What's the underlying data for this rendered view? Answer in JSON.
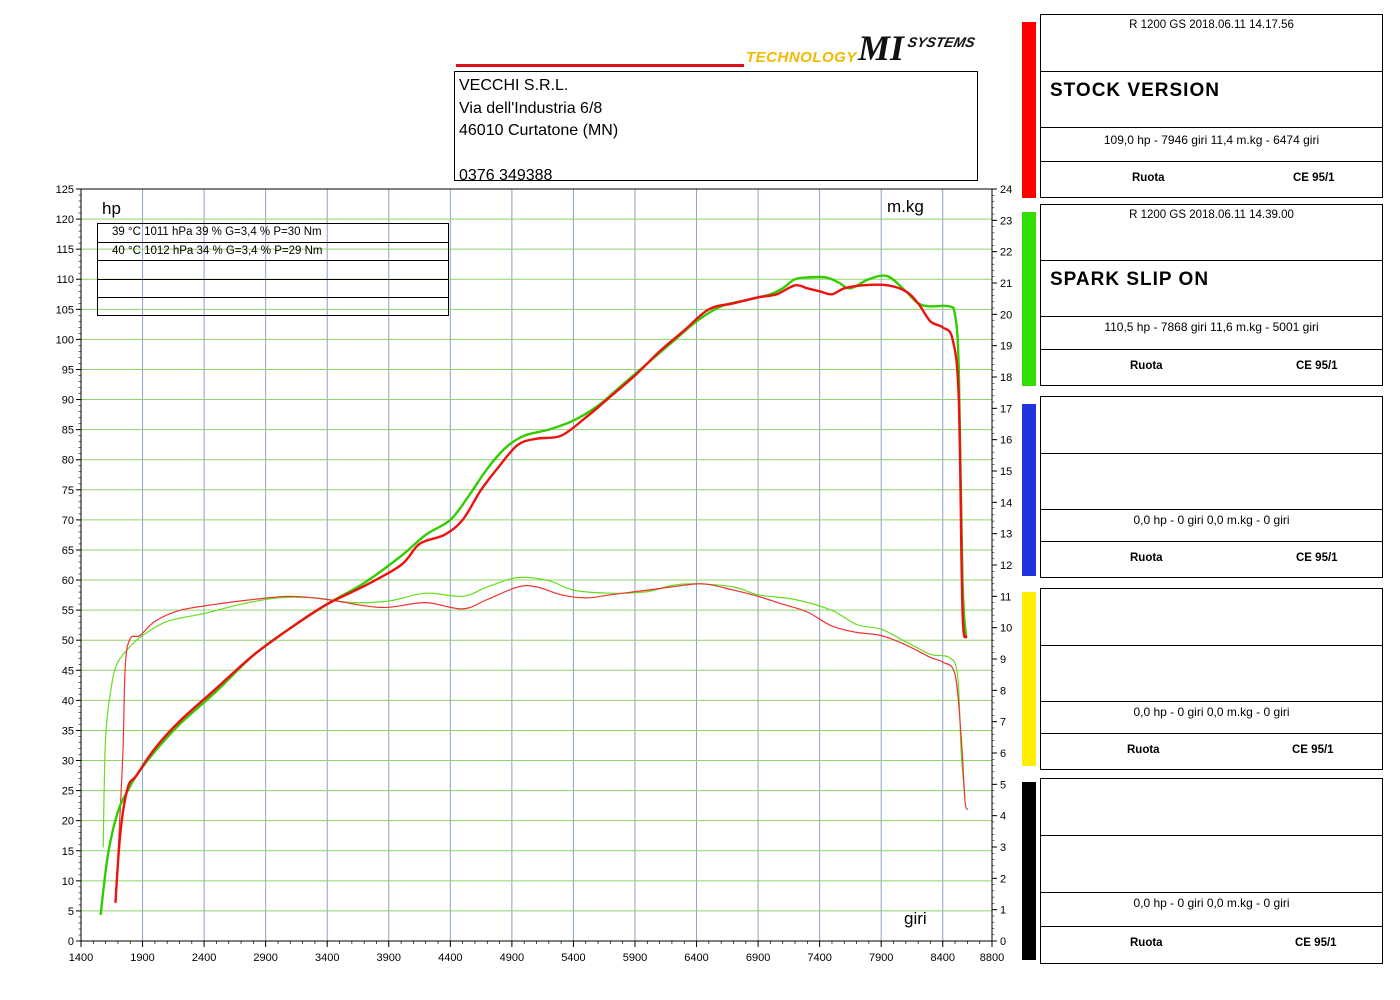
{
  "header": {
    "logo_technology": "TECHNOLOGY",
    "logo_mi": "MI",
    "logo_systems": "SYSTEMS",
    "address": [
      "VECCHI S.R.L.",
      "Via dell'Industria 6/8",
      "46010 Curtatone (MN)",
      "",
      "0376 349388"
    ]
  },
  "conditions": [
    "39 °C   1011 hPa   39 %   G=3,4 %   P=30 Nm",
    "40 °C   1012 hPa   34 %   G=3,4 %   P=29 Nm",
    "",
    "",
    ""
  ],
  "runs": [
    {
      "color": "#ff0000",
      "model": "R 1200 GS    2018.06.11 14.17.56",
      "name": "STOCK VERSION",
      "result": "109,0 hp - 7946 giri      11,4 m.kg - 6474 giri",
      "left": "Ruota",
      "right": "CE 95/1"
    },
    {
      "color": "#33dd00",
      "model": "R 1200 GS    2018.06.11 14.39.00",
      "name": "SPARK SLIP ON",
      "result": "110,5 hp - 7868 giri      11,6 m.kg - 5001 giri",
      "left": "Ruota",
      "right": "CE 95/1"
    },
    {
      "color": "#2233dd",
      "model": "",
      "name": "",
      "result": "0,0 hp - 0 giri      0,0 m.kg - 0 giri",
      "left": "Ruota",
      "right": "CE 95/1"
    },
    {
      "color": "#ffee00",
      "model": "",
      "name": "",
      "result": "0,0 hp - 0 giri      0,0 m.kg - 0 giri",
      "left": "Ruota",
      "right": "CE 95/1"
    },
    {
      "color": "#000000",
      "model": "",
      "name": "",
      "result": "0,0 hp - 0 giri      0,0 m.kg - 0 giri",
      "left": "Ruota",
      "right": "CE 95/1"
    }
  ],
  "chart_data": {
    "type": "line",
    "title": "",
    "xlabel": "giri",
    "ylabel": "hp",
    "y2label": "m.kg",
    "xlim": [
      1400,
      8800
    ],
    "ylim": [
      0,
      125
    ],
    "y2lim": [
      0,
      24
    ],
    "x_ticks": [
      1400,
      1900,
      2400,
      2900,
      3400,
      3900,
      4400,
      4900,
      5400,
      5900,
      6400,
      6900,
      7400,
      7900,
      8400,
      8800
    ],
    "y_ticks": [
      0,
      5,
      10,
      15,
      20,
      25,
      30,
      35,
      40,
      45,
      50,
      55,
      60,
      65,
      70,
      75,
      80,
      85,
      90,
      95,
      100,
      105,
      110,
      115,
      120,
      125
    ],
    "y2_ticks": [
      0,
      1,
      2,
      3,
      4,
      5,
      6,
      7,
      8,
      9,
      10,
      11,
      12,
      13,
      14,
      15,
      16,
      17,
      18,
      19,
      20,
      21,
      22,
      23,
      24
    ],
    "grid": true,
    "series": [
      {
        "name": "STOCK VERSION",
        "axis": "hp",
        "color": "#ee1111",
        "width": 2.4,
        "points": [
          [
            1680,
            6.5
          ],
          [
            1720,
            18
          ],
          [
            1780,
            25.5
          ],
          [
            1850,
            27.5
          ],
          [
            2000,
            32
          ],
          [
            2200,
            36.5
          ],
          [
            2500,
            42
          ],
          [
            2800,
            47.5
          ],
          [
            3100,
            52
          ],
          [
            3400,
            56
          ],
          [
            3700,
            59
          ],
          [
            4000,
            62.5
          ],
          [
            4150,
            66
          ],
          [
            4350,
            67.5
          ],
          [
            4500,
            70
          ],
          [
            4650,
            75
          ],
          [
            4800,
            79
          ],
          [
            4950,
            82.5
          ],
          [
            5100,
            83.5
          ],
          [
            5300,
            84
          ],
          [
            5500,
            87
          ],
          [
            5700,
            90.5
          ],
          [
            5900,
            94
          ],
          [
            6100,
            98
          ],
          [
            6300,
            101.5
          ],
          [
            6500,
            105
          ],
          [
            6700,
            106
          ],
          [
            6900,
            107
          ],
          [
            7050,
            107.5
          ],
          [
            7200,
            109
          ],
          [
            7300,
            108.5
          ],
          [
            7400,
            108
          ],
          [
            7500,
            107.5
          ],
          [
            7600,
            108.5
          ],
          [
            7750,
            109
          ],
          [
            7950,
            109
          ],
          [
            8100,
            108
          ],
          [
            8200,
            106
          ],
          [
            8300,
            103
          ],
          [
            8400,
            102
          ],
          [
            8480,
            100
          ],
          [
            8530,
            90
          ],
          [
            8560,
            55
          ],
          [
            8590,
            50.5
          ]
        ]
      },
      {
        "name": "SPARK SLIP ON",
        "axis": "hp",
        "color": "#33cc00",
        "width": 2.4,
        "points": [
          [
            1560,
            4.5
          ],
          [
            1620,
            14.5
          ],
          [
            1700,
            21.5
          ],
          [
            1780,
            25
          ],
          [
            1850,
            27.5
          ],
          [
            2000,
            31.5
          ],
          [
            2200,
            36
          ],
          [
            2500,
            41.5
          ],
          [
            2800,
            47.5
          ],
          [
            3100,
            52
          ],
          [
            3400,
            56
          ],
          [
            3700,
            59.5
          ],
          [
            4000,
            64
          ],
          [
            4200,
            67.5
          ],
          [
            4400,
            70
          ],
          [
            4550,
            74
          ],
          [
            4700,
            78.5
          ],
          [
            4850,
            82
          ],
          [
            5000,
            84
          ],
          [
            5200,
            85
          ],
          [
            5400,
            86.5
          ],
          [
            5600,
            89
          ],
          [
            5800,
            92.5
          ],
          [
            6000,
            96
          ],
          [
            6200,
            99.5
          ],
          [
            6400,
            103
          ],
          [
            6600,
            105.5
          ],
          [
            6800,
            106.5
          ],
          [
            7000,
            107.5
          ],
          [
            7100,
            108.5
          ],
          [
            7200,
            110
          ],
          [
            7300,
            110.3
          ],
          [
            7450,
            110.3
          ],
          [
            7550,
            109.5
          ],
          [
            7650,
            108.5
          ],
          [
            7800,
            110
          ],
          [
            7950,
            110.5
          ],
          [
            8100,
            108
          ],
          [
            8200,
            106
          ],
          [
            8300,
            105.5
          ],
          [
            8450,
            105.5
          ],
          [
            8500,
            104
          ],
          [
            8530,
            95
          ],
          [
            8560,
            60
          ],
          [
            8590,
            50.5
          ]
        ]
      },
      {
        "name": "STOCK VERSION",
        "axis": "m.kg",
        "color": "#ee3333",
        "width": 1.2,
        "points": [
          [
            1700,
            2.7
          ],
          [
            1740,
            6
          ],
          [
            1760,
            8.8
          ],
          [
            1800,
            9.65
          ],
          [
            1880,
            9.75
          ],
          [
            2000,
            10.2
          ],
          [
            2200,
            10.55
          ],
          [
            2500,
            10.75
          ],
          [
            2800,
            10.9
          ],
          [
            3100,
            11
          ],
          [
            3400,
            10.9
          ],
          [
            3700,
            10.7
          ],
          [
            3900,
            10.65
          ],
          [
            4200,
            10.8
          ],
          [
            4500,
            10.6
          ],
          [
            4700,
            10.9
          ],
          [
            4950,
            11.3
          ],
          [
            5100,
            11.3
          ],
          [
            5300,
            11.05
          ],
          [
            5500,
            10.95
          ],
          [
            5700,
            11.05
          ],
          [
            6000,
            11.2
          ],
          [
            6200,
            11.3
          ],
          [
            6450,
            11.4
          ],
          [
            6700,
            11.2
          ],
          [
            6900,
            11
          ],
          [
            7100,
            10.75
          ],
          [
            7300,
            10.5
          ],
          [
            7500,
            10.05
          ],
          [
            7700,
            9.85
          ],
          [
            7900,
            9.75
          ],
          [
            8100,
            9.45
          ],
          [
            8300,
            9.05
          ],
          [
            8400,
            8.9
          ],
          [
            8500,
            8.5
          ],
          [
            8550,
            6.5
          ],
          [
            8580,
            4.5
          ],
          [
            8600,
            4.2
          ]
        ]
      },
      {
        "name": "SPARK SLIP ON",
        "axis": "m.kg",
        "color": "#66dd22",
        "width": 1.2,
        "points": [
          [
            1580,
            3
          ],
          [
            1600,
            6.5
          ],
          [
            1650,
            8.2
          ],
          [
            1700,
            8.9
          ],
          [
            1800,
            9.4
          ],
          [
            1900,
            9.75
          ],
          [
            2100,
            10.2
          ],
          [
            2400,
            10.45
          ],
          [
            2700,
            10.75
          ],
          [
            3000,
            10.95
          ],
          [
            3300,
            10.95
          ],
          [
            3600,
            10.8
          ],
          [
            3900,
            10.85
          ],
          [
            4200,
            11.1
          ],
          [
            4500,
            11
          ],
          [
            4700,
            11.3
          ],
          [
            4950,
            11.6
          ],
          [
            5200,
            11.5
          ],
          [
            5400,
            11.2
          ],
          [
            5700,
            11.1
          ],
          [
            6000,
            11.15
          ],
          [
            6200,
            11.35
          ],
          [
            6400,
            11.4
          ],
          [
            6700,
            11.3
          ],
          [
            6900,
            11.05
          ],
          [
            7200,
            10.9
          ],
          [
            7500,
            10.55
          ],
          [
            7700,
            10.1
          ],
          [
            7900,
            9.95
          ],
          [
            8100,
            9.55
          ],
          [
            8300,
            9.15
          ],
          [
            8450,
            9.05
          ],
          [
            8520,
            8.5
          ],
          [
            8550,
            6
          ],
          [
            8580,
            4.6
          ]
        ]
      }
    ]
  }
}
